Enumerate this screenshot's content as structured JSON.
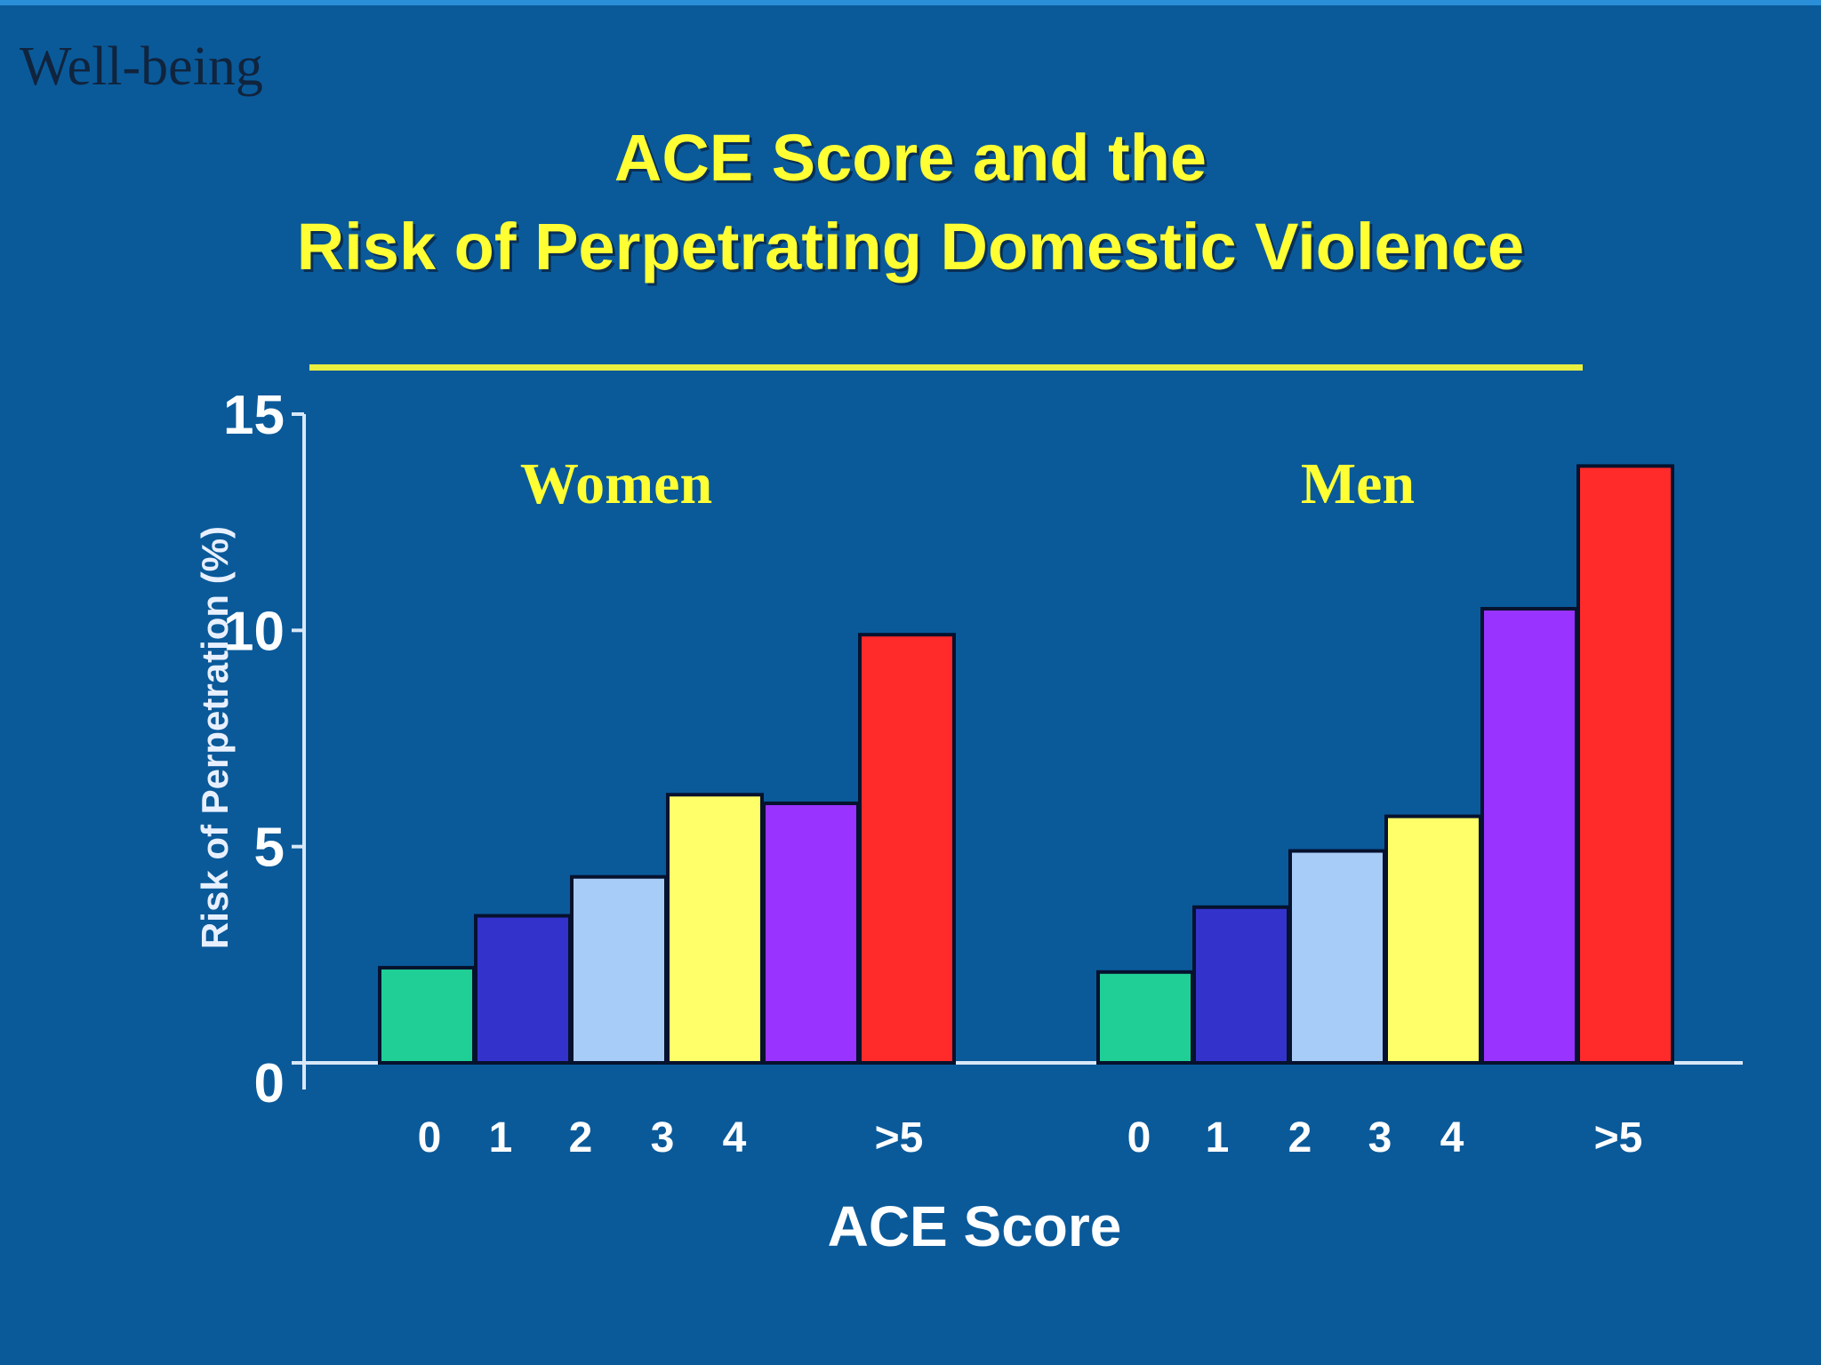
{
  "section_label": "Well-being",
  "chart_data": {
    "type": "bar",
    "title": [
      "ACE Score and the",
      "Risk of Perpetrating Domestic Violence"
    ],
    "xlabel": "ACE Score",
    "ylabel": "Risk of Perpetration (%)",
    "ylim": [
      0,
      15
    ],
    "yticks": [
      0,
      5,
      10,
      15
    ],
    "grid": false,
    "categories": [
      "0",
      "1",
      "2",
      "3",
      "4",
      ">5"
    ],
    "colors": [
      "#1fcf96",
      "#3333cc",
      "#a8ccf8",
      "#ffff6a",
      "#9933ff",
      "#ff2a2a"
    ],
    "groups": [
      {
        "name": "Women",
        "values": [
          2.2,
          3.4,
          4.3,
          6.2,
          6.0,
          9.9
        ]
      },
      {
        "name": "Men",
        "values": [
          2.1,
          3.6,
          4.9,
          5.7,
          10.5,
          13.8
        ]
      }
    ]
  }
}
